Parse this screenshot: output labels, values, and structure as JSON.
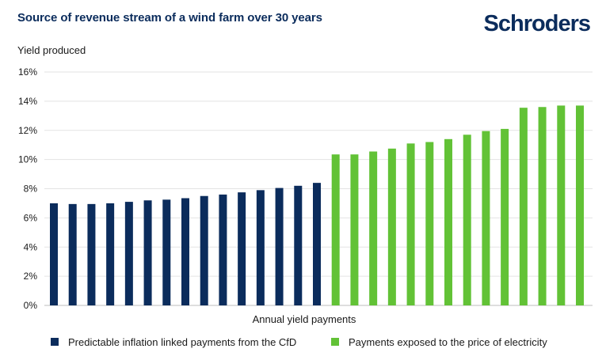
{
  "header": {
    "brand": "Schroders"
  },
  "chart_data": {
    "type": "bar",
    "title": "Source of revenue stream of a wind farm over 30 years",
    "ylabel": "Yield produced",
    "xlabel": "Annual yield payments",
    "ylim": [
      0,
      16
    ],
    "yticks": [
      0,
      2,
      4,
      6,
      8,
      10,
      12,
      14,
      16
    ],
    "ytick_suffix": "%",
    "grid": true,
    "legend_position": "bottom",
    "series": [
      {
        "name": "Predictable inflation linked payments from the CfD",
        "color": "#0b2c5c",
        "values": [
          7.0,
          6.95,
          6.95,
          7.0,
          7.1,
          7.2,
          7.25,
          7.35,
          7.5,
          7.6,
          7.75,
          7.9,
          8.05,
          8.2,
          8.4
        ]
      },
      {
        "name": "Payments exposed to the price of electricity",
        "color": "#62c236",
        "values": [
          10.35,
          10.35,
          10.55,
          10.75,
          11.1,
          11.2,
          11.4,
          11.7,
          11.95,
          12.1,
          13.55,
          13.6,
          13.7,
          13.7
        ]
      }
    ]
  }
}
